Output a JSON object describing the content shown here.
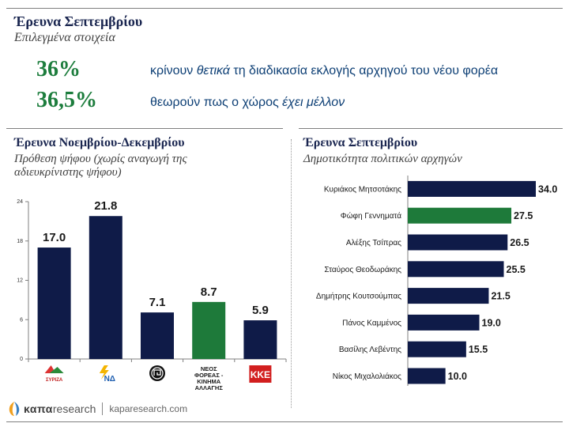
{
  "header": {
    "title": "Έρευνα Σεπτεμβρίου",
    "subtitle": "Επιλεγμένα στοιχεία"
  },
  "highlights": [
    {
      "value": "36%",
      "text_pre": "κρίνουν ",
      "text_em": "θετικά",
      "text_post": " τη διαδικασία εκλογής αρχηγού του νέου φορέα"
    },
    {
      "value": "36,5%",
      "text_pre": "θεωρούν πως ο χώρος ",
      "text_em": "έχει μέλλον",
      "text_post": ""
    }
  ],
  "left_section": {
    "title": "Έρευνα Νοεμβρίου-Δεκεμβρίου",
    "subtitle": "Πρόθεση ψήφου (χωρίς αναγωγή της αδιευκρίνιστης ψήφου)"
  },
  "right_section": {
    "title": "Έρευνα Σεπτεμβρίου",
    "subtitle": "Δημοτικότητα πολιτικών αρχηγών"
  },
  "colors": {
    "navy": "#0f1b48",
    "green": "#1e7a3a",
    "title": "#1a2650",
    "accent_text": "#0d3f75"
  },
  "chart_data": [
    {
      "type": "bar",
      "title": "Πρόθεση ψήφου",
      "categories": [
        "ΣΥΡΙΖΑ",
        "ΝΔ",
        "ΧΑ",
        "ΝΕΟΣ ΦΟΡΕΑΣ - ΚΙΝΗΜΑ ΑΛΛΑΓΗΣ",
        "ΚΚΕ"
      ],
      "category_labels": [
        "ΣΥΡΙΖΑ",
        "ΝΔ",
        "",
        "ΝΕΟΣ ΦΟΡΕΑΣ - ΚΙΝΗΜΑ ΑΛΛΑΓΗΣ",
        "ΚΚΕ"
      ],
      "values": [
        17.0,
        21.8,
        7.1,
        8.7,
        5.9
      ],
      "highlight_index": 3,
      "ylim": [
        0,
        24
      ],
      "yticks": [
        0,
        6,
        12,
        18,
        24
      ],
      "xlabel": "",
      "ylabel": ""
    },
    {
      "type": "bar",
      "orientation": "horizontal",
      "title": "Δημοτικότητα πολιτικών αρχηγών",
      "categories": [
        "Κυριάκος Μητσοτάκης",
        "Φώφη Γεννηματά",
        "Αλέξης Τσίπρας",
        "Σταύρος Θεοδωράκης",
        "Δημήτρης Κουτσούμπας",
        "Πάνος Καμμένος",
        "Βασίλης Λεβέντης",
        "Νίκος Μιχαλολιάκος"
      ],
      "values": [
        34.0,
        27.5,
        26.5,
        25.5,
        21.5,
        19.0,
        15.5,
        10.0
      ],
      "highlight_index": 1,
      "xlim": [
        0,
        40
      ]
    }
  ],
  "footer": {
    "brand_a": "καπα",
    "brand_b": "research",
    "url": "kaparesearch.com"
  }
}
